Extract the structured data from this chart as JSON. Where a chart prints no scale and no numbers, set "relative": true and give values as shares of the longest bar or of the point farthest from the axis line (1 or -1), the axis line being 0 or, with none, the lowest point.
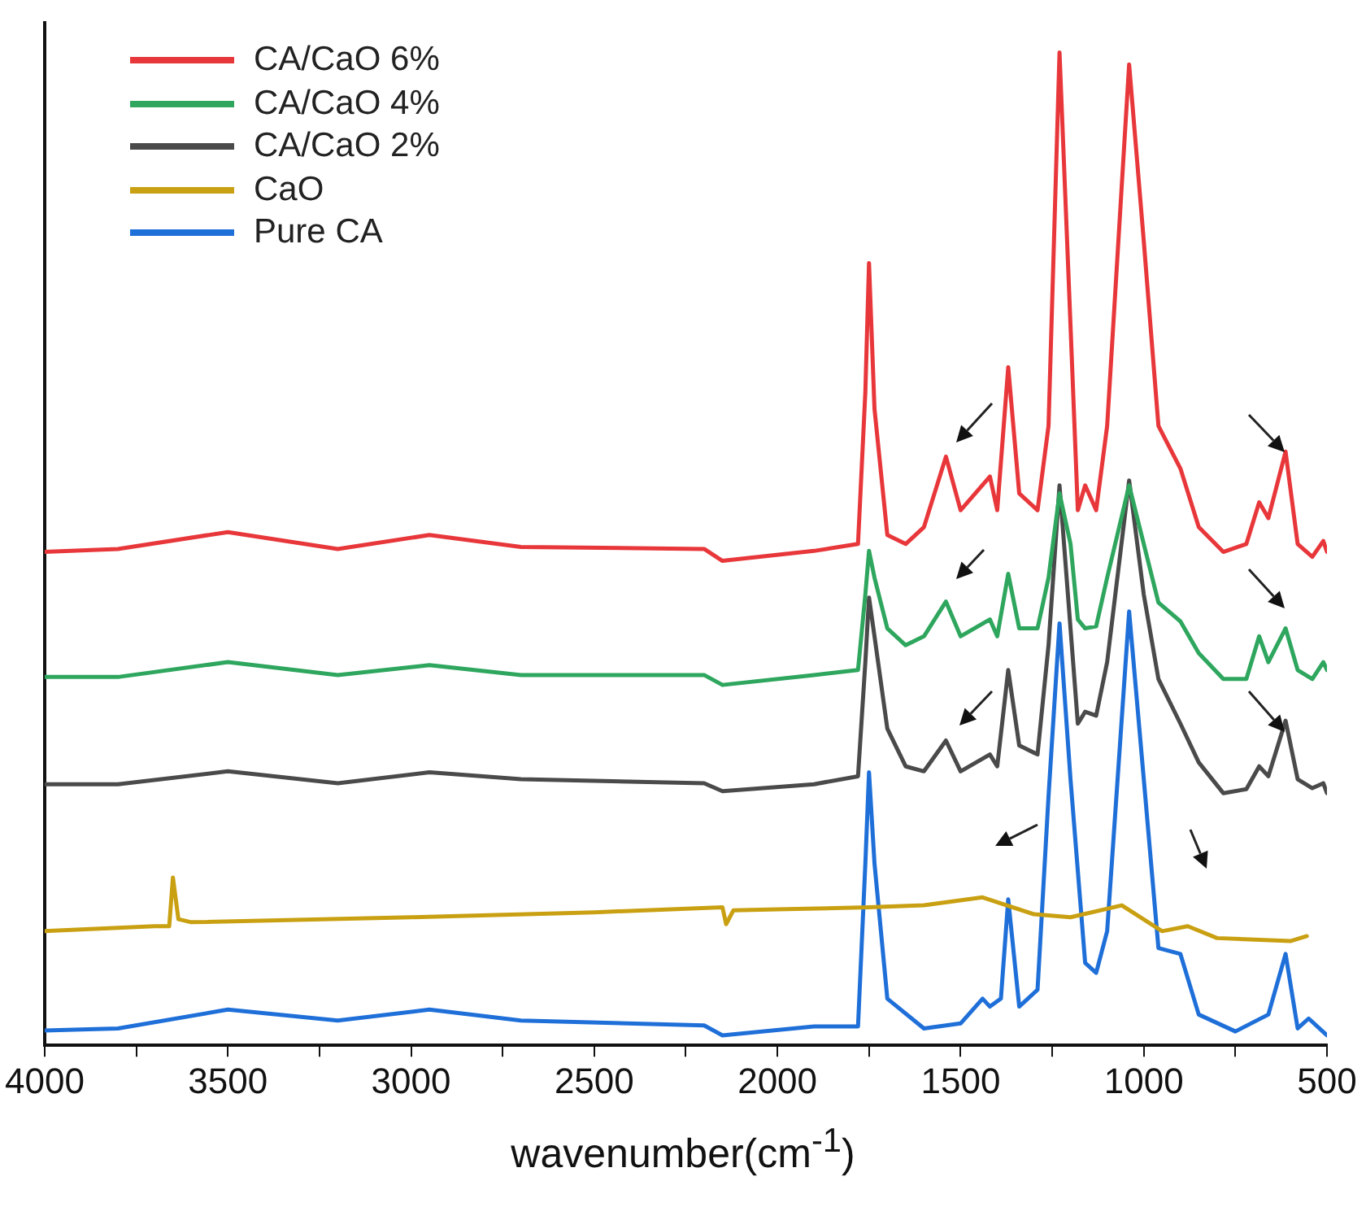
{
  "chart_data": {
    "type": "line",
    "xlabel": "wavenumber(cm$^{-1}$)",
    "relative": true,
    "legend": "top left",
    "marker": "none",
    "line_style": "solid",
    "grid": false,
    "xlim": [
      4000,
      500
    ],
    "xticks": [
      4000,
      {
        "value": 3750,
        "label": null
      },
      3500,
      {
        "value": 3250,
        "label": null
      },
      3000,
      {
        "value": 2750,
        "label": null
      },
      2500,
      {
        "value": 2250,
        "label": null
      },
      2000,
      {
        "value": 1750,
        "label": null
      },
      1500,
      {
        "value": 1250,
        "label": null
      },
      1000,
      {
        "value": 750,
        "label": null
      },
      500
    ],
    "series": [
      {
        "name": "CA/CaO 6%",
        "color": "#e8373a",
        "x": [
          4000,
          3800,
          3500,
          3200,
          2950,
          2700,
          2200,
          2150,
          1900,
          1780,
          1760,
          1750,
          1735,
          1700,
          1650,
          1600,
          1540,
          1500,
          1420,
          1400,
          1370,
          1340,
          1290,
          1260,
          1230,
          1200,
          1180,
          1160,
          1130,
          1100,
          1040,
          1000,
          960,
          900,
          850,
          783,
          720,
          685,
          660,
          613,
          580,
          540,
          510,
          500
        ],
        "values": [
          0.497,
          0.5,
          0.517,
          0.5,
          0.514,
          0.502,
          0.5,
          0.488,
          0.498,
          0.505,
          0.658,
          0.788,
          0.641,
          0.514,
          0.505,
          0.522,
          0.593,
          0.539,
          0.573,
          0.539,
          0.683,
          0.556,
          0.539,
          0.624,
          1,
          0.725,
          0.539,
          0.564,
          0.539,
          0.624,
          0.988,
          0.81,
          0.624,
          0.581,
          0.522,
          0.497,
          0.505,
          0.547,
          0.531,
          0.598,
          0.505,
          0.492,
          0.508,
          0.497
        ]
      },
      {
        "name": "CA/CaO 4%",
        "color": "#2ea65e",
        "x": [
          4000,
          3800,
          3500,
          3200,
          2950,
          2700,
          2200,
          2150,
          1900,
          1780,
          1760,
          1750,
          1735,
          1700,
          1650,
          1600,
          1540,
          1500,
          1420,
          1400,
          1370,
          1340,
          1290,
          1260,
          1230,
          1200,
          1180,
          1160,
          1130,
          1100,
          1040,
          1000,
          960,
          900,
          850,
          783,
          720,
          685,
          660,
          613,
          580,
          540,
          510,
          500
        ],
        "values": [
          0.371,
          0.371,
          0.386,
          0.373,
          0.383,
          0.373,
          0.373,
          0.363,
          0.373,
          0.378,
          0.454,
          0.498,
          0.471,
          0.42,
          0.403,
          0.412,
          0.447,
          0.412,
          0.429,
          0.412,
          0.475,
          0.42,
          0.42,
          0.471,
          0.556,
          0.505,
          0.429,
          0.42,
          0.422,
          0.471,
          0.564,
          0.505,
          0.446,
          0.427,
          0.395,
          0.369,
          0.369,
          0.412,
          0.386,
          0.42,
          0.378,
          0.369,
          0.386,
          0.378
        ]
      },
      {
        "name": "CA/CaO 2%",
        "color": "#4a4a4a",
        "x": [
          4000,
          3800,
          3500,
          3200,
          2950,
          2700,
          2200,
          2150,
          1900,
          1780,
          1760,
          1750,
          1735,
          1700,
          1650,
          1600,
          1540,
          1500,
          1420,
          1400,
          1370,
          1340,
          1290,
          1260,
          1230,
          1200,
          1180,
          1160,
          1130,
          1100,
          1040,
          1000,
          960,
          900,
          850,
          783,
          720,
          685,
          660,
          613,
          580,
          540,
          510,
          500
        ],
        "values": [
          0.263,
          0.263,
          0.276,
          0.264,
          0.275,
          0.268,
          0.264,
          0.256,
          0.263,
          0.271,
          0.386,
          0.451,
          0.412,
          0.319,
          0.281,
          0.276,
          0.307,
          0.276,
          0.293,
          0.281,
          0.378,
          0.302,
          0.293,
          0.403,
          0.564,
          0.42,
          0.324,
          0.336,
          0.332,
          0.386,
          0.569,
          0.454,
          0.369,
          0.324,
          0.285,
          0.254,
          0.258,
          0.281,
          0.271,
          0.327,
          0.268,
          0.259,
          0.264,
          0.254
        ]
      },
      {
        "name": "CaO",
        "color": "#c9a012",
        "x": [
          4000,
          3700,
          3660,
          3650,
          3635,
          3600,
          3000,
          2500,
          2150,
          2140,
          2120,
          2000,
          1750,
          1600,
          1440,
          1300,
          1200,
          1060,
          950,
          880,
          800,
          600,
          555
        ],
        "values": [
          0.115,
          0.12,
          0.12,
          0.169,
          0.127,
          0.124,
          0.129,
          0.134,
          0.139,
          0.122,
          0.136,
          0.137,
          0.139,
          0.141,
          0.149,
          0.132,
          0.129,
          0.141,
          0.115,
          0.12,
          0.108,
          0.105,
          0.11
        ]
      },
      {
        "name": "Pure CA",
        "color": "#1f6fd9",
        "x": [
          4000,
          3800,
          3500,
          3200,
          2950,
          2700,
          2200,
          2150,
          1900,
          1780,
          1760,
          1750,
          1735,
          1700,
          1600,
          1500,
          1440,
          1420,
          1390,
          1370,
          1340,
          1290,
          1260,
          1230,
          1200,
          1160,
          1130,
          1100,
          1040,
          1000,
          960,
          900,
          850,
          750,
          660,
          613,
          580,
          550,
          500
        ],
        "values": [
          0.015,
          0.017,
          0.036,
          0.025,
          0.036,
          0.025,
          0.02,
          0.01,
          0.019,
          0.019,
          0.183,
          0.275,
          0.183,
          0.047,
          0.017,
          0.022,
          0.047,
          0.039,
          0.047,
          0.147,
          0.039,
          0.056,
          0.251,
          0.425,
          0.268,
          0.083,
          0.073,
          0.115,
          0.437,
          0.268,
          0.098,
          0.092,
          0.031,
          0.014,
          0.031,
          0.092,
          0.017,
          0.027,
          0.01
        ]
      }
    ]
  }
}
